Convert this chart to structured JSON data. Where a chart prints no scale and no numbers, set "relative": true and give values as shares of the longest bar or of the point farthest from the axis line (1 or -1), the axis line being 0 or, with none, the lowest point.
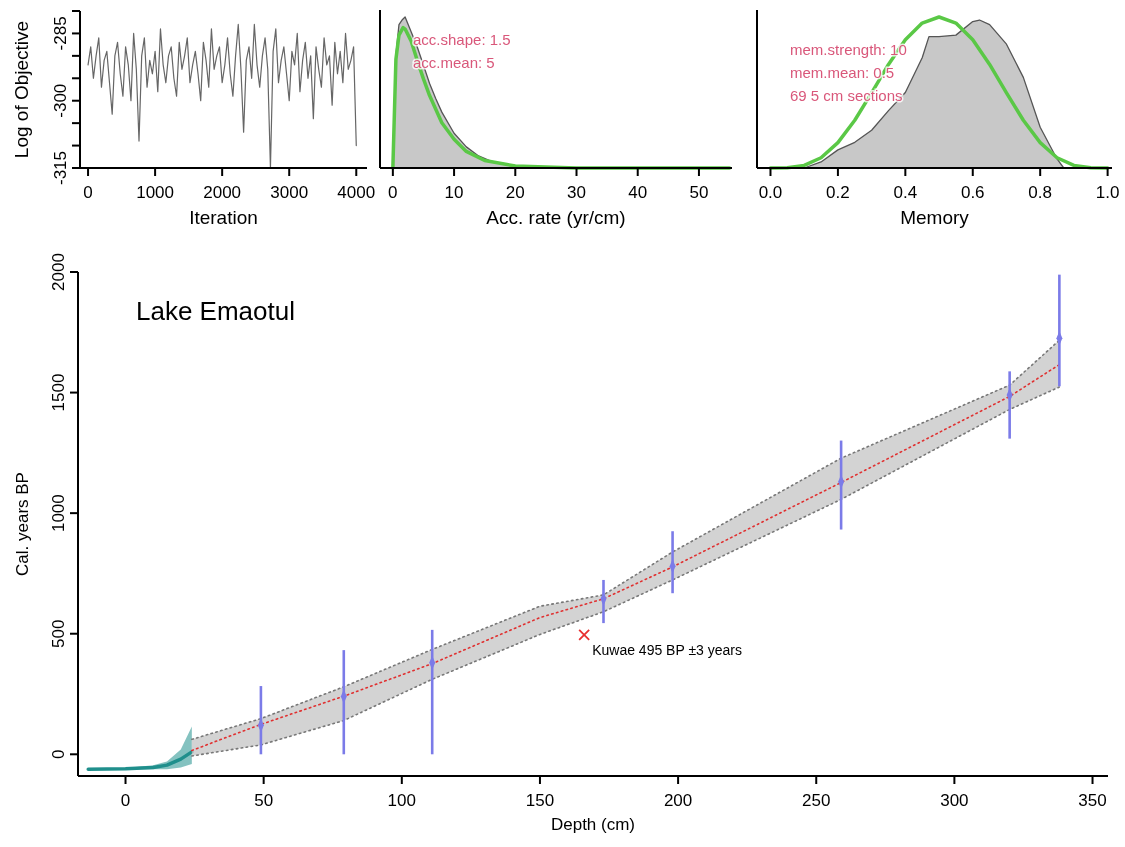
{
  "chart_data": [
    {
      "type": "line",
      "xlabel": "Iteration",
      "ylabel": "Log of Objective",
      "xlim": [
        -120,
        4160
      ],
      "ylim": [
        -315,
        -280
      ],
      "xticks": [
        0,
        1000,
        2000,
        3000,
        4000
      ],
      "yticks": [
        {
          "value": -280,
          "label": null
        },
        -285,
        {
          "value": -290,
          "label": null
        },
        {
          "value": -295,
          "label": null
        },
        -300,
        {
          "value": -305,
          "label": null
        },
        {
          "value": -310,
          "label": null
        },
        -315
      ],
      "x": [
        0,
        40,
        80,
        120,
        160,
        200,
        240,
        280,
        320,
        360,
        400,
        440,
        480,
        520,
        560,
        600,
        640,
        680,
        720,
        760,
        800,
        840,
        880,
        920,
        960,
        1000,
        1040,
        1080,
        1120,
        1160,
        1200,
        1240,
        1280,
        1320,
        1360,
        1400,
        1440,
        1480,
        1520,
        1560,
        1600,
        1640,
        1680,
        1720,
        1760,
        1800,
        1840,
        1880,
        1920,
        1960,
        2000,
        2040,
        2080,
        2120,
        2160,
        2200,
        2240,
        2280,
        2320,
        2360,
        2400,
        2440,
        2480,
        2520,
        2560,
        2600,
        2640,
        2680,
        2720,
        2760,
        2800,
        2840,
        2880,
        2920,
        2960,
        3000,
        3040,
        3080,
        3120,
        3160,
        3200,
        3240,
        3280,
        3320,
        3360,
        3400,
        3440,
        3480,
        3520,
        3560,
        3600,
        3640,
        3680,
        3720,
        3760,
        3800,
        3840,
        3880,
        3920,
        3960,
        4000
      ],
      "series": [
        {
          "color": "#666666",
          "values": [
            -292,
            -288,
            -295,
            -290,
            -286,
            -297,
            -291,
            -289,
            -296,
            -303,
            -290,
            -287,
            -294,
            -299,
            -288,
            -292,
            -300,
            -285,
            -293,
            -309,
            -290,
            -286,
            -297,
            -291,
            -294,
            -289,
            -298,
            -284,
            -292,
            -296,
            -290,
            -288,
            -295,
            -299,
            -287,
            -293,
            -290,
            -286,
            -296,
            -292,
            -289,
            -294,
            -300,
            -287,
            -291,
            -297,
            -284,
            -293,
            -290,
            -288,
            -296,
            -292,
            -286,
            -294,
            -299,
            -290,
            -283,
            -293,
            -307,
            -291,
            -288,
            -295,
            -283,
            -292,
            -297,
            -290,
            -286,
            -293,
            -315,
            -289,
            -284,
            -296,
            -291,
            -288,
            -294,
            -300,
            -289,
            -292,
            -285,
            -298,
            -291,
            -287,
            -295,
            -290,
            -304,
            -288,
            -293,
            -297,
            -286,
            -292,
            -290,
            -301,
            -287,
            -294,
            -289,
            -296,
            -285,
            -293,
            -291,
            -288,
            -310
          ]
        }
      ]
    },
    {
      "type": "area",
      "relative": true,
      "xlabel": "Acc. rate (yr/cm)",
      "xlim": [
        -2.1,
        55.4
      ],
      "xticks": [
        0,
        10,
        20,
        30,
        40,
        50
      ],
      "annotations": [
        "acc.shape:  1.5",
        "acc.mean:  5"
      ],
      "series": [
        {
          "color": "#c8c8c8",
          "x": [
            0,
            0.5,
            1,
            1.5,
            2,
            2.5,
            3,
            4,
            5,
            6,
            7,
            8,
            10,
            12,
            14,
            16,
            18,
            20,
            25,
            30,
            40,
            55
          ],
          "values": [
            0,
            0.75,
            0.95,
            0.98,
            1,
            0.95,
            0.9,
            0.8,
            0.68,
            0.56,
            0.46,
            0.37,
            0.23,
            0.14,
            0.08,
            0.045,
            0.025,
            0.013,
            0.003,
            0.001,
            0,
            0
          ]
        },
        {
          "type": "line",
          "color": "#5ac846",
          "x": [
            0,
            0.5,
            1,
            1.67,
            2,
            3,
            4,
            5,
            6,
            8,
            10,
            12,
            15,
            20,
            30,
            55
          ],
          "values": [
            0,
            0.72,
            0.88,
            0.93,
            0.92,
            0.84,
            0.71,
            0.59,
            0.48,
            0.3,
            0.19,
            0.11,
            0.05,
            0.013,
            0,
            0
          ]
        }
      ]
    },
    {
      "type": "area",
      "relative": true,
      "xlabel": "Memory",
      "xlim": [
        -0.04,
        1.013
      ],
      "xticks": [
        {
          "value": 0,
          "label": "0.0"
        },
        0.2,
        0.4,
        0.6,
        0.8,
        {
          "value": 1,
          "label": "1.0"
        }
      ],
      "annotations": [
        "mem.strength: 10",
        "mem.mean: 0.5",
        "69 5 cm sections"
      ],
      "series": [
        {
          "color": "#c8c8c8",
          "x": [
            0.1,
            0.15,
            0.2,
            0.25,
            0.3,
            0.35,
            0.4,
            0.45,
            0.47,
            0.5,
            0.55,
            0.6,
            0.62,
            0.65,
            0.7,
            0.75,
            0.8,
            0.85,
            0.87
          ],
          "values": [
            0,
            0.04,
            0.12,
            0.17,
            0.25,
            0.38,
            0.5,
            0.73,
            0.87,
            0.87,
            0.88,
            0.97,
            0.98,
            0.95,
            0.82,
            0.6,
            0.27,
            0.06,
            0
          ]
        },
        {
          "type": "line",
          "color": "#5ac846",
          "x": [
            0,
            0.05,
            0.1,
            0.15,
            0.2,
            0.25,
            0.3,
            0.35,
            0.4,
            0.45,
            0.5,
            0.55,
            0.6,
            0.65,
            0.7,
            0.75,
            0.8,
            0.85,
            0.9,
            0.95,
            1
          ],
          "values": [
            0,
            0.001,
            0.017,
            0.068,
            0.168,
            0.316,
            0.498,
            0.686,
            0.849,
            0.96,
            1,
            0.96,
            0.849,
            0.686,
            0.498,
            0.316,
            0.168,
            0.068,
            0.017,
            0.001,
            0
          ]
        }
      ]
    },
    {
      "type": "line",
      "title": "Lake Emaotul",
      "xlabel": "Depth (cm)",
      "ylabel": "Cal. years BP",
      "xlim": [
        -17.2,
        355.6
      ],
      "ylim": [
        -90,
        2000
      ],
      "xticks": [
        0,
        50,
        100,
        150,
        200,
        250,
        300,
        350
      ],
      "yticks": [
        0,
        500,
        1000,
        1500,
        2000
      ],
      "annotations": [
        {
          "text": "Kuwae 495 BP ±3 years",
          "x": 166,
          "y": 495
        }
      ],
      "series": [
        {
          "color": "#1f8f8c",
          "x": [
            -13.5,
            0,
            10,
            15,
            20,
            24
          ],
          "values": [
            -62,
            -60,
            -55,
            -45,
            -20,
            10
          ],
          "lower": [
            -64,
            -63,
            -62,
            -62,
            -55,
            -40
          ],
          "upper": [
            -60,
            -57,
            -45,
            -30,
            20,
            115
          ]
        },
        {
          "color": "#e03030",
          "line_style": "dotted",
          "x": [
            24,
            49,
            79,
            111,
            150,
            173,
            198,
            259,
            320,
            338
          ],
          "values": [
            16,
            124,
            241,
            376,
            567,
            645,
            777,
            1127,
            1484,
            1616
          ],
          "lower": [
            -7,
            39,
            140,
            311,
            497,
            591,
            723,
            1057,
            1430,
            1523
          ],
          "upper": [
            62,
            148,
            280,
            435,
            614,
            661,
            839,
            1228,
            1531,
            1717
          ]
        },
        {
          "color": "#777777",
          "line_style": "dotted",
          "x": [
            24,
            49,
            79,
            111,
            150,
            173,
            198,
            259,
            320,
            338
          ],
          "values": [
            -7,
            39,
            140,
            311,
            497,
            591,
            723,
            1057,
            1430,
            1523
          ]
        },
        {
          "color": "#777777",
          "line_style": "dotted",
          "x": [
            24,
            49,
            79,
            111,
            150,
            173,
            198,
            259,
            320,
            338
          ],
          "values": [
            62,
            148,
            280,
            435,
            614,
            661,
            839,
            1228,
            1531,
            1717
          ]
        },
        {
          "type": "scatter",
          "color": "#7b7be8",
          "marker": "diamond",
          "x": [
            49,
            79,
            111,
            173,
            198,
            259,
            320,
            338
          ],
          "values": [
            120,
            240,
            380,
            645,
            780,
            1130,
            1490,
            1725
          ],
          "errors": [
            [
              0,
              283
            ],
            [
              0,
              432
            ],
            [
              0,
              516
            ],
            [
              544,
              723
            ],
            [
              668,
              925
            ],
            [
              932,
              1301
            ],
            [
              1309,
              1588
            ],
            [
              1526,
              1989
            ]
          ]
        },
        {
          "type": "scatter",
          "color": "#e83030",
          "marker": "cross",
          "x": [
            166
          ],
          "values": [
            495
          ]
        }
      ]
    }
  ]
}
